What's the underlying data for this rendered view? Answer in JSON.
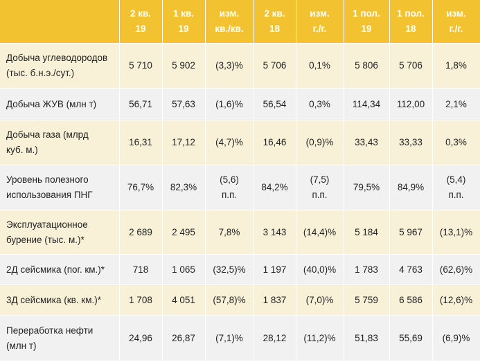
{
  "columns": [
    {
      "line1": "",
      "line2": ""
    },
    {
      "line1": "2 кв.",
      "line2": "19"
    },
    {
      "line1": "1 кв.",
      "line2": "19"
    },
    {
      "line1": "изм.",
      "line2": "кв./кв."
    },
    {
      "line1": "2 кв.",
      "line2": "18"
    },
    {
      "line1": "изм.",
      "line2": "г./г."
    },
    {
      "line1": "1 пол.",
      "line2": "19"
    },
    {
      "line1": "1 пол.",
      "line2": "18"
    },
    {
      "line1": "изм.",
      "line2": "г./г."
    }
  ],
  "rows": [
    {
      "label1": "Добыча углеводородов",
      "label2": "(тыс. б.н.э./сут.)",
      "cells": [
        [
          "5 710",
          ""
        ],
        [
          "5 902",
          ""
        ],
        [
          "(3,3)%",
          ""
        ],
        [
          "5 706",
          ""
        ],
        [
          "0,1%",
          ""
        ],
        [
          "5 806",
          ""
        ],
        [
          "5 706",
          ""
        ],
        [
          "1,8%",
          ""
        ]
      ]
    },
    {
      "label1": "Добыча ЖУВ (млн т)",
      "label2": "",
      "cells": [
        [
          "56,71",
          ""
        ],
        [
          "57,63",
          ""
        ],
        [
          "(1,6)%",
          ""
        ],
        [
          "56,54",
          ""
        ],
        [
          "0,3%",
          ""
        ],
        [
          "114,34",
          ""
        ],
        [
          "112,00",
          ""
        ],
        [
          "2,1%",
          ""
        ]
      ]
    },
    {
      "label1": "Добыча газа (млрд",
      "label2": "куб. м.)",
      "cells": [
        [
          "16,31",
          ""
        ],
        [
          "17,12",
          ""
        ],
        [
          "(4,7)%",
          ""
        ],
        [
          "16,46",
          ""
        ],
        [
          "(0,9)%",
          ""
        ],
        [
          "33,43",
          ""
        ],
        [
          "33,33",
          ""
        ],
        [
          "0,3%",
          ""
        ]
      ]
    },
    {
      "label1": "Уровень полезного",
      "label2": "использования ПНГ",
      "cells": [
        [
          "76,7%",
          ""
        ],
        [
          "82,3%",
          ""
        ],
        [
          "(5,6)",
          "п.п."
        ],
        [
          "84,2%",
          ""
        ],
        [
          "(7,5)",
          "п.п."
        ],
        [
          "79,5%",
          ""
        ],
        [
          "84,9%",
          ""
        ],
        [
          "(5,4)",
          "п.п."
        ]
      ]
    },
    {
      "label1": "Эксплуатационное",
      "label2": "бурение (тыс. м.)*",
      "cells": [
        [
          "2 689",
          ""
        ],
        [
          "2 495",
          ""
        ],
        [
          "7,8%",
          ""
        ],
        [
          "3 143",
          ""
        ],
        [
          "(14,4)%",
          ""
        ],
        [
          "5 184",
          ""
        ],
        [
          "5 967",
          ""
        ],
        [
          "(13,1)%",
          ""
        ]
      ]
    },
    {
      "label1": "2Д сейсмика (пог. км.)*",
      "label2": "",
      "cells": [
        [
          "718",
          ""
        ],
        [
          "1 065",
          ""
        ],
        [
          "(32,5)%",
          ""
        ],
        [
          "1 197",
          ""
        ],
        [
          "(40,0)%",
          ""
        ],
        [
          "1 783",
          ""
        ],
        [
          "4 763",
          ""
        ],
        [
          "(62,6)%",
          ""
        ]
      ]
    },
    {
      "label1": "3Д сейсмика (кв. км.)*",
      "label2": "",
      "cells": [
        [
          "1 708",
          ""
        ],
        [
          "4 051",
          ""
        ],
        [
          "(57,8)%",
          ""
        ],
        [
          "1 837",
          ""
        ],
        [
          "(7,0)%",
          ""
        ],
        [
          "5 759",
          ""
        ],
        [
          "6 586",
          ""
        ],
        [
          "(12,6)%",
          ""
        ]
      ]
    },
    {
      "label1": "Переработка нефти",
      "label2": "(млн т)",
      "cells": [
        [
          "24,96",
          ""
        ],
        [
          "26,87",
          ""
        ],
        [
          "(7,1)%",
          ""
        ],
        [
          "28,12",
          ""
        ],
        [
          "(11,2)%",
          ""
        ],
        [
          "51,83",
          ""
        ],
        [
          "55,69",
          ""
        ],
        [
          "(6,9)%",
          ""
        ]
      ]
    }
  ]
}
